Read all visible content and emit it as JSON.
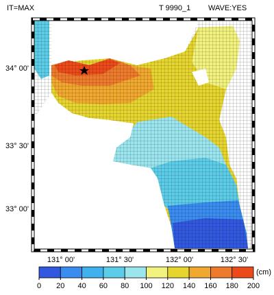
{
  "header": {
    "left": "IT=MAX",
    "center": "T 9990_1",
    "right": "WAVE:YES"
  },
  "map": {
    "lat_labels": [
      "34° 00'",
      "33° 30'",
      "33° 00'"
    ],
    "lon_labels": [
      "131° 00'",
      "131° 30'",
      "132° 00'",
      "132° 30'"
    ]
  },
  "colorbar": {
    "ticks": [
      0,
      20,
      40,
      60,
      80,
      100,
      120,
      140,
      160,
      180,
      200
    ],
    "unit": "(cm)",
    "colors": [
      "#3358e0",
      "#3a8cf0",
      "#3fb2ee",
      "#5ccde8",
      "#9be6ee",
      "#f2f27e",
      "#e6d52e",
      "#f0a82e",
      "#ee7a2c",
      "#ec4a1a"
    ]
  }
}
